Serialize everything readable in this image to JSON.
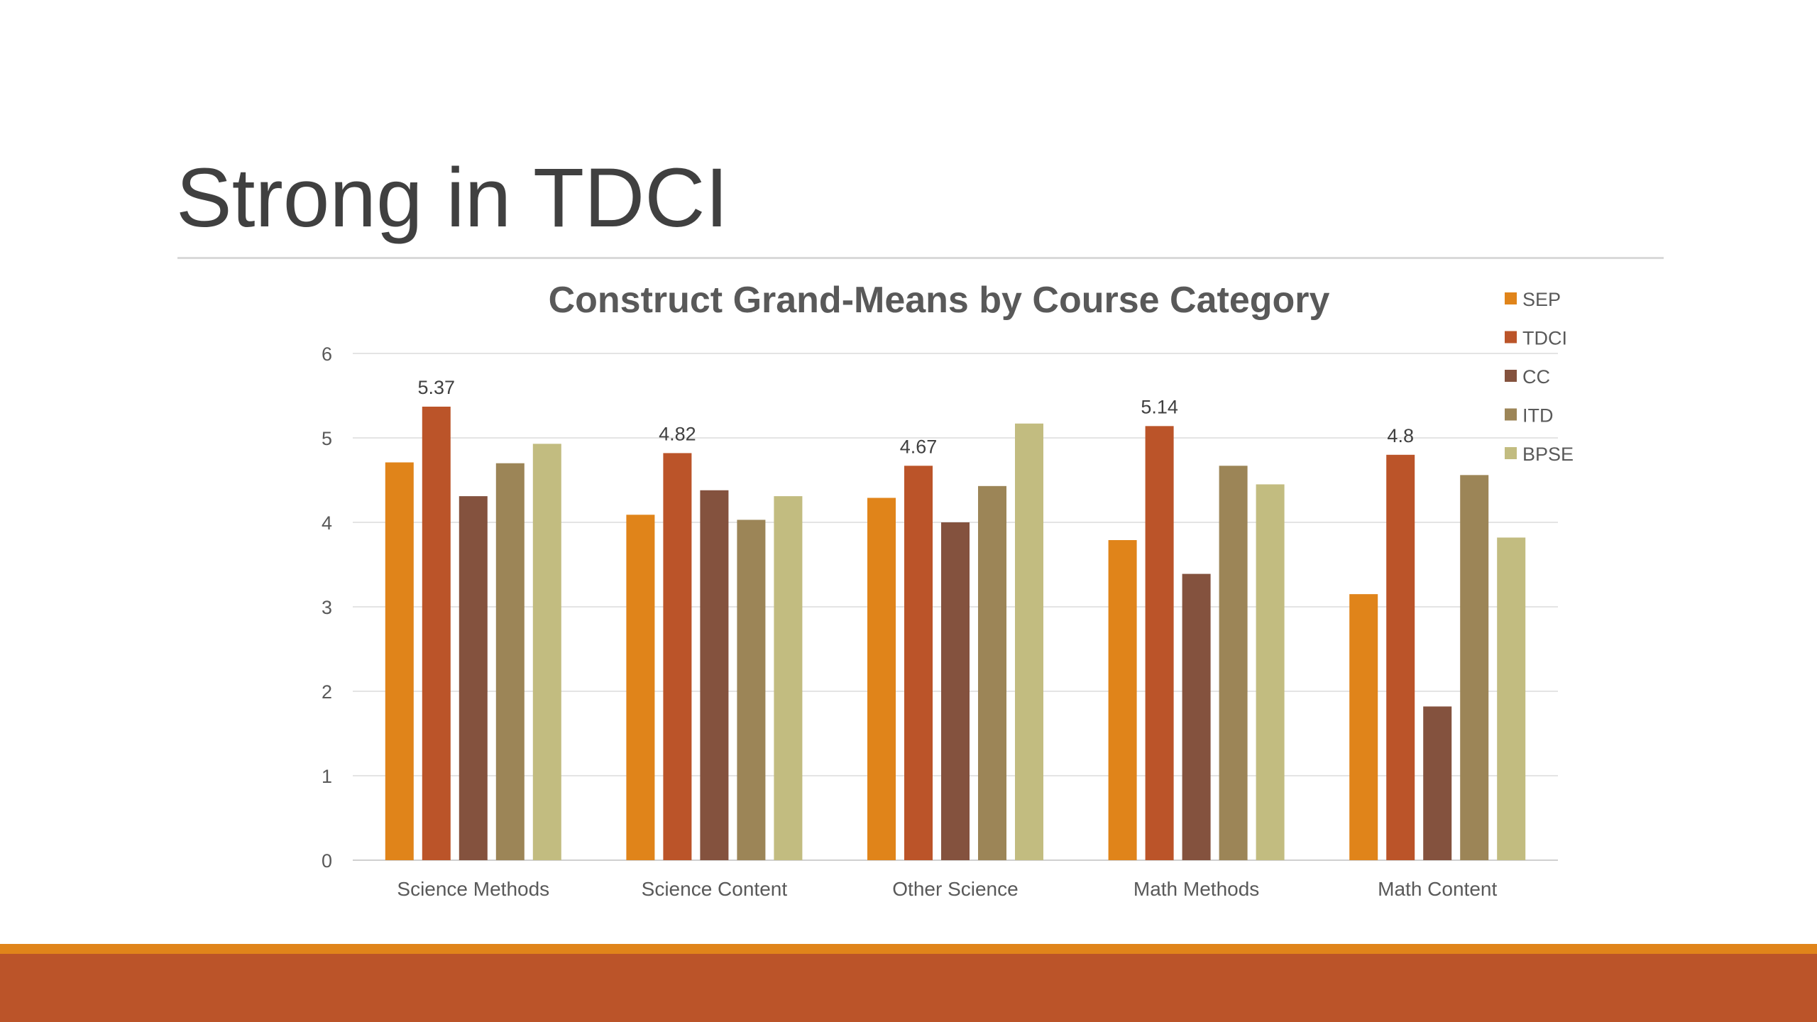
{
  "slide": {
    "title": "Strong in TDCI",
    "accent_color": "#e0841a",
    "band_color": "#bb5429"
  },
  "chart_data": {
    "type": "bar",
    "title": "Construct Grand-Means by Course Category",
    "xlabel": "",
    "ylabel": "",
    "ylim": [
      0,
      6
    ],
    "yticks": [
      0,
      1,
      2,
      3,
      4,
      5,
      6
    ],
    "grid": true,
    "legend_position": "top-right",
    "categories": [
      "Science Methods",
      "Science Content",
      "Other Science",
      "Math Methods",
      "Math Content"
    ],
    "series": [
      {
        "name": "SEP",
        "color": "#e0841a",
        "values": [
          4.71,
          4.09,
          4.29,
          3.79,
          3.15
        ]
      },
      {
        "name": "TDCI",
        "color": "#bb5429",
        "values": [
          5.37,
          4.82,
          4.67,
          5.14,
          4.8
        ],
        "data_labels": true
      },
      {
        "name": "CC",
        "color": "#84523e",
        "values": [
          4.31,
          4.38,
          4.0,
          3.39,
          1.82
        ]
      },
      {
        "name": "ITD",
        "color": "#9c8557",
        "values": [
          4.7,
          4.03,
          4.43,
          4.67,
          4.56
        ]
      },
      {
        "name": "BPSE",
        "color": "#c2bc80",
        "values": [
          4.93,
          4.31,
          5.17,
          4.45,
          3.82
        ]
      }
    ]
  }
}
